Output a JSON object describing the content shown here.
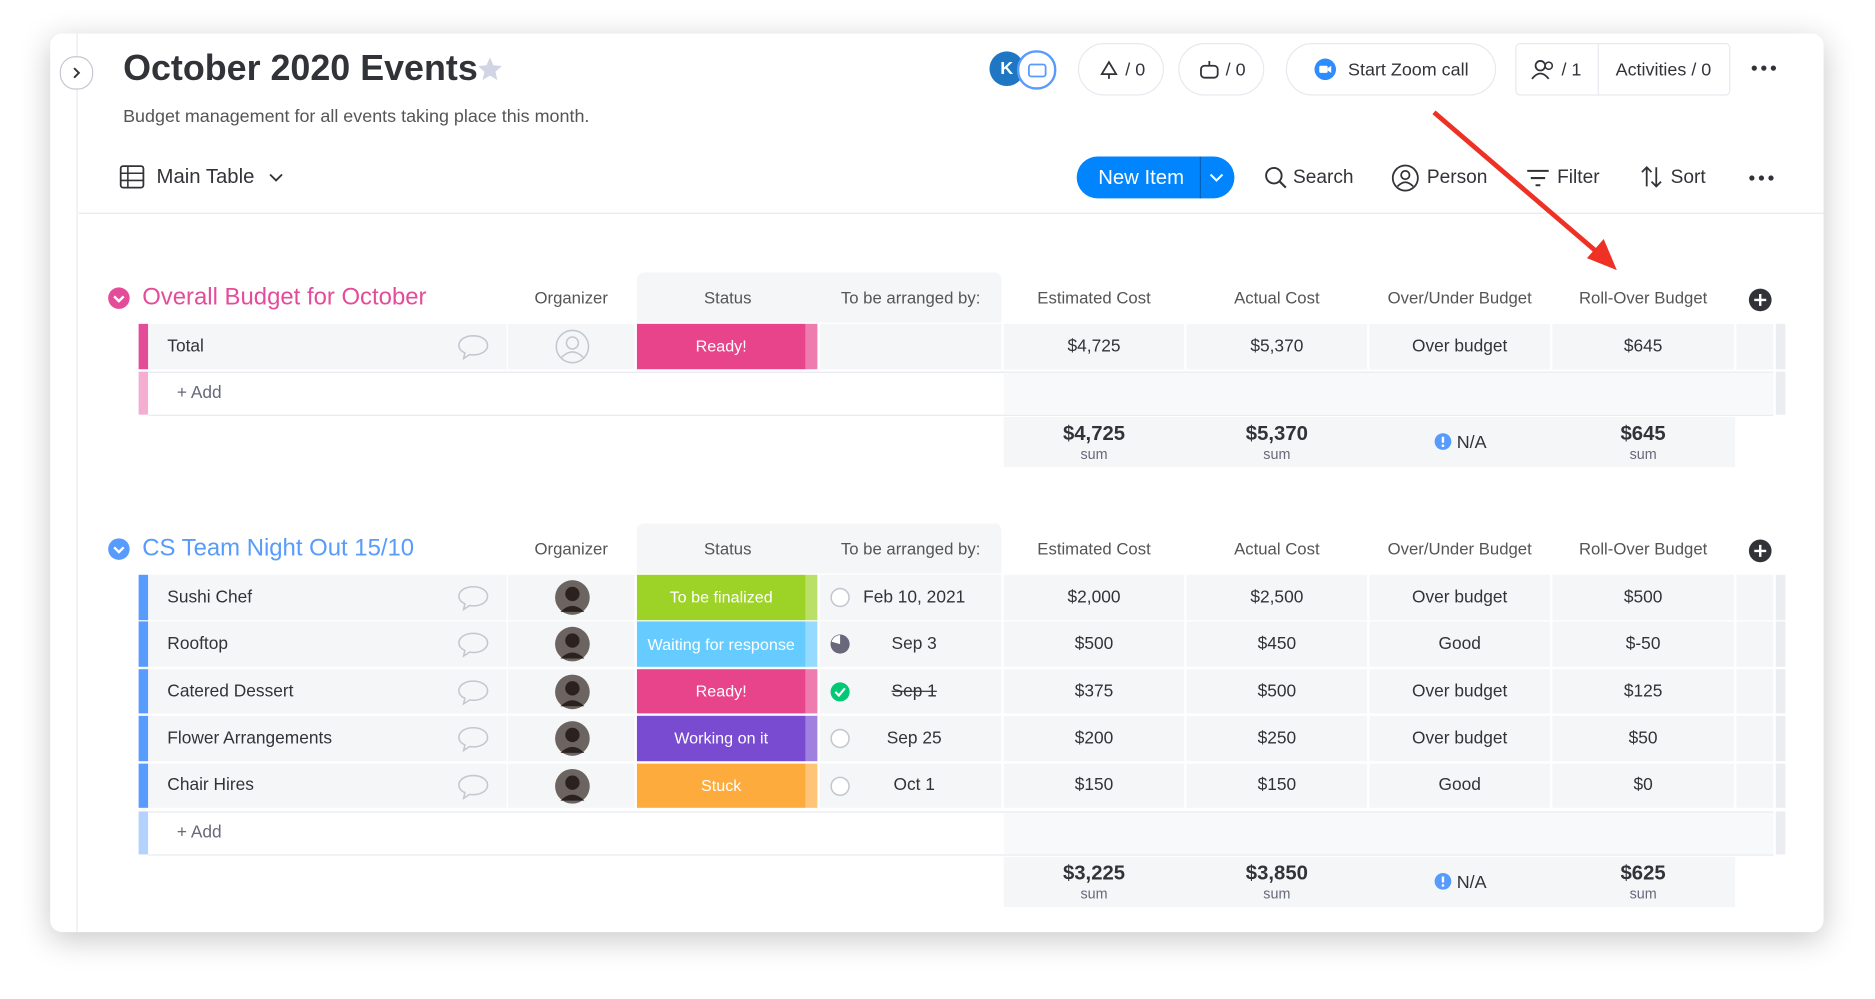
{
  "header": {
    "title": "October 2020 Events",
    "description": "Budget management for all events taking place this month.",
    "avatar_initial": "K",
    "updates_count": "/ 0",
    "automations_count": "/ 0",
    "zoom_button": "Start Zoom call",
    "members_count": "/ 1",
    "activities": "Activities / 0"
  },
  "toolbar": {
    "view": "Main Table",
    "new_item": "New Item",
    "search": "Search",
    "person": "Person",
    "filter": "Filter",
    "sort": "Sort"
  },
  "columns": {
    "organizer": "Organizer",
    "status": "Status",
    "date": "To be arranged by:",
    "estimated": "Estimated Cost",
    "actual": "Actual Cost",
    "over_under": "Over/Under Budget",
    "rollover": "Roll-Over Budget"
  },
  "summary_label": "sum",
  "groups": [
    {
      "title": "Overall Budget for October",
      "color": "#e44c9a",
      "add_label": "+ Add",
      "rows": [
        {
          "name": "Total",
          "organizer_photo": false,
          "status": "Ready!",
          "status_color": "#e8448b",
          "date": null,
          "date_state": null,
          "estimated": "$4,725",
          "actual": "$5,370",
          "over_under": "Over budget",
          "rollover": "$645"
        }
      ],
      "summary": {
        "estimated": "$4,725",
        "actual": "$5,370",
        "over_under": "N/A",
        "rollover": "$645"
      }
    },
    {
      "title": "CS Team Night Out 15/10",
      "color": "#579bfc",
      "add_label": "+ Add",
      "rows": [
        {
          "name": "Sushi Chef",
          "organizer_photo": true,
          "status": "To be finalized",
          "status_color": "#9cd326",
          "date": "Feb 10, 2021",
          "date_state": "open",
          "estimated": "$2,000",
          "actual": "$2,500",
          "over_under": "Over budget",
          "rollover": "$500"
        },
        {
          "name": "Rooftop",
          "organizer_photo": true,
          "status": "Waiting for response",
          "status_color": "#66ccff",
          "date": "Sep 3",
          "date_state": "progress",
          "estimated": "$500",
          "actual": "$450",
          "over_under": "Good",
          "rollover": "$-50"
        },
        {
          "name": "Catered Dessert",
          "organizer_photo": true,
          "status": "Ready!",
          "status_color": "#e8448b",
          "date": "Sep 1",
          "date_state": "done",
          "estimated": "$375",
          "actual": "$500",
          "over_under": "Over budget",
          "rollover": "$125"
        },
        {
          "name": "Flower Arrangements",
          "organizer_photo": true,
          "status": "Working on it",
          "status_color": "#784bd1",
          "date": "Sep 25",
          "date_state": "open",
          "estimated": "$200",
          "actual": "$250",
          "over_under": "Over budget",
          "rollover": "$50"
        },
        {
          "name": "Chair Hires",
          "organizer_photo": true,
          "status": "Stuck",
          "status_color": "#fdab3d",
          "date": "Oct 1",
          "date_state": "open",
          "estimated": "$150",
          "actual": "$150",
          "over_under": "Good",
          "rollover": "$0"
        }
      ],
      "summary": {
        "estimated": "$3,225",
        "actual": "$3,850",
        "over_under": "N/A",
        "rollover": "$625"
      }
    }
  ]
}
